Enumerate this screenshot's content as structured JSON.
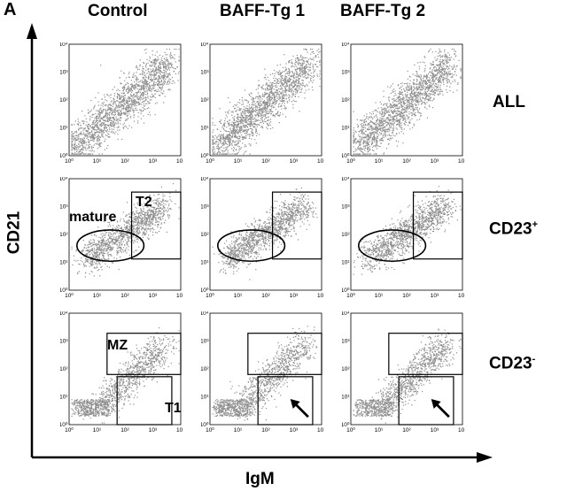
{
  "figure_label": "A",
  "columns": [
    "Control",
    "BAFF-Tg 1",
    "BAFF-Tg 2"
  ],
  "rows": [
    {
      "label": "ALL",
      "sup": ""
    },
    {
      "label": "CD23",
      "sup": "+"
    },
    {
      "label": "CD23",
      "sup": "-"
    }
  ],
  "y_axis_label": "CD21",
  "x_axis_label": "IgM",
  "tick_labels": [
    "10⁰",
    "10¹",
    "10²",
    "10³",
    "10⁴"
  ],
  "gate_labels": {
    "mature": "mature",
    "t2": "T2",
    "mz": "MZ",
    "t1": "T1"
  },
  "colors": {
    "dots": "#8e8e8e",
    "ink": "#000000"
  }
}
